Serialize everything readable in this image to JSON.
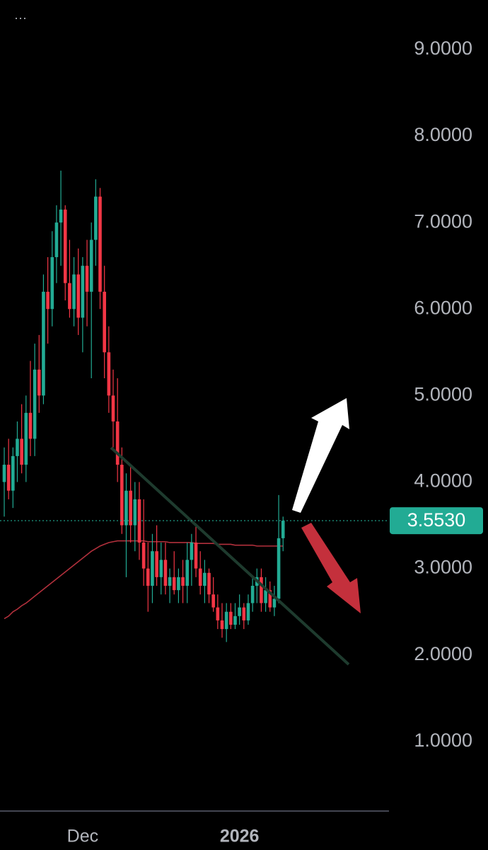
{
  "chart_data": {
    "type": "candlestick",
    "menu": "···",
    "categories": [
      null,
      null,
      null,
      null,
      null,
      null,
      null,
      null,
      null,
      null,
      null,
      null,
      null,
      null,
      null,
      null,
      null,
      null,
      "Dec",
      null,
      null,
      null,
      null,
      null,
      null,
      null,
      null,
      null,
      null,
      null,
      null,
      null,
      null,
      null,
      null,
      null,
      null,
      null,
      null,
      null,
      null,
      null,
      null,
      null,
      null,
      null,
      null,
      null,
      null,
      null,
      null,
      null,
      null,
      null,
      "2026",
      null,
      null,
      null,
      null,
      null,
      null,
      null,
      null,
      null,
      null
    ],
    "open": [
      4.0,
      4.2,
      3.9,
      4.3,
      4.5,
      4.2,
      4.8,
      4.5,
      5.3,
      5.0,
      6.2,
      6.0,
      6.6,
      7.0,
      7.15,
      6.3,
      6.0,
      6.4,
      5.9,
      6.5,
      6.2,
      6.8,
      7.3,
      6.2,
      5.5,
      5.0,
      4.7,
      4.2,
      3.5,
      3.9,
      3.5,
      3.8,
      3.3,
      3.0,
      2.8,
      3.2,
      2.9,
      3.1,
      2.8,
      2.9,
      2.75,
      2.9,
      2.8,
      3.1,
      3.3,
      3.0,
      2.8,
      2.95,
      2.7,
      2.55,
      2.4,
      2.3,
      2.5,
      2.35,
      2.45,
      2.55,
      2.4,
      2.6,
      2.8,
      2.9,
      2.6,
      2.75,
      2.55,
      2.65,
      3.35
    ],
    "high": [
      4.4,
      4.5,
      4.4,
      4.7,
      4.9,
      5.0,
      5.4,
      5.6,
      5.7,
      6.4,
      6.6,
      6.9,
      7.2,
      7.6,
      7.2,
      6.8,
      6.6,
      6.7,
      6.6,
      6.8,
      7.0,
      7.5,
      7.4,
      6.5,
      5.8,
      5.3,
      5.2,
      4.4,
      4.1,
      4.2,
      4.0,
      4.0,
      3.8,
      3.3,
      3.4,
      3.5,
      3.3,
      3.3,
      3.0,
      3.2,
      3.0,
      3.1,
      3.3,
      3.4,
      3.5,
      3.2,
      3.1,
      3.0,
      2.9,
      2.7,
      2.6,
      2.6,
      2.6,
      2.6,
      2.7,
      2.6,
      2.7,
      2.9,
      3.0,
      3.0,
      2.9,
      2.85,
      2.8,
      3.85,
      3.6
    ],
    "low": [
      3.6,
      3.8,
      3.7,
      4.0,
      4.1,
      4.0,
      4.3,
      4.3,
      4.8,
      4.9,
      5.6,
      5.8,
      6.3,
      6.5,
      6.1,
      5.9,
      5.8,
      5.7,
      5.5,
      5.8,
      5.2,
      6.5,
      6.0,
      5.2,
      4.8,
      4.4,
      4.0,
      3.4,
      2.9,
      3.3,
      3.2,
      3.1,
      2.8,
      2.5,
      2.6,
      2.8,
      2.7,
      2.7,
      2.6,
      2.7,
      2.6,
      2.6,
      2.6,
      2.8,
      2.9,
      2.7,
      2.6,
      2.6,
      2.5,
      2.3,
      2.2,
      2.15,
      2.3,
      2.3,
      2.35,
      2.3,
      2.35,
      2.5,
      2.6,
      2.5,
      2.5,
      2.5,
      2.45,
      2.6,
      3.2
    ],
    "close": [
      4.2,
      3.9,
      4.3,
      4.5,
      4.2,
      4.8,
      4.5,
      5.3,
      5.0,
      6.2,
      6.0,
      6.6,
      7.0,
      7.15,
      6.3,
      6.0,
      6.4,
      5.9,
      6.5,
      6.2,
      6.8,
      7.3,
      6.2,
      5.5,
      5.0,
      4.7,
      4.2,
      3.5,
      3.9,
      3.5,
      3.8,
      3.3,
      3.0,
      2.8,
      3.2,
      2.9,
      3.1,
      2.8,
      2.9,
      2.75,
      2.9,
      2.8,
      3.1,
      3.3,
      3.0,
      2.8,
      2.95,
      2.7,
      2.55,
      2.4,
      2.3,
      2.5,
      2.35,
      2.45,
      2.55,
      2.4,
      2.6,
      2.8,
      2.9,
      2.6,
      2.75,
      2.55,
      2.65,
      3.35,
      3.553
    ],
    "ma": [
      2.42,
      2.45,
      2.5,
      2.53,
      2.57,
      2.6,
      2.64,
      2.68,
      2.72,
      2.76,
      2.8,
      2.84,
      2.88,
      2.92,
      2.96,
      3.0,
      3.04,
      3.08,
      3.12,
      3.16,
      3.2,
      3.23,
      3.26,
      3.28,
      3.3,
      3.31,
      3.32,
      3.32,
      3.32,
      3.32,
      3.32,
      3.32,
      3.32,
      3.31,
      3.31,
      3.31,
      3.31,
      3.31,
      3.3,
      3.3,
      3.3,
      3.3,
      3.3,
      3.3,
      3.29,
      3.29,
      3.29,
      3.29,
      3.29,
      3.28,
      3.28,
      3.28,
      3.28,
      3.27,
      3.27,
      3.27,
      3.27,
      3.27,
      3.26,
      3.26,
      3.26,
      3.26,
      3.26,
      3.26,
      3.26
    ],
    "up_color": "#22ab94",
    "down_color": "#f23645",
    "ma_color": "#b2303c",
    "last_price": {
      "value": 3.553,
      "label": "3.5530"
    },
    "ylim": [
      0.196,
      9.573
    ],
    "yticks": [
      {
        "value": 1,
        "label": "1.0000"
      },
      {
        "value": 2,
        "label": "2.0000"
      },
      {
        "value": 3,
        "label": "3.0000"
      },
      {
        "value": 4,
        "label": "4.0000"
      },
      {
        "value": 5,
        "label": "5.0000"
      },
      {
        "value": 6,
        "label": "6.0000"
      },
      {
        "value": 7,
        "label": "7.0000"
      },
      {
        "value": 8,
        "label": "8.0000"
      },
      {
        "value": 9,
        "label": "9.0000"
      }
    ]
  }
}
